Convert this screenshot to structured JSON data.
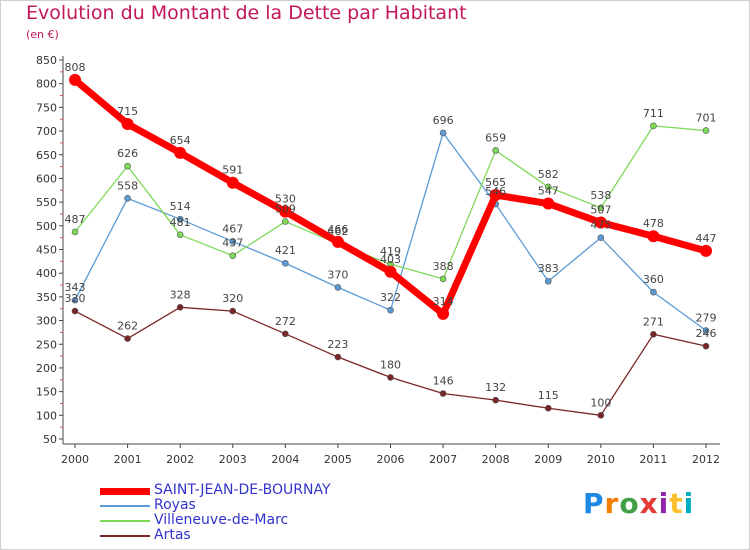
{
  "header": {
    "title": "Evolution du Montant de la Dette par Habitant",
    "unit": "(en €)"
  },
  "logo": {
    "text": "Proxiti",
    "colors": [
      "#1e88e5",
      "#f57c00",
      "#43a047",
      "#e53935",
      "#8e24aa",
      "#fbc02d",
      "#00acc1"
    ]
  },
  "chart_data": {
    "type": "line",
    "title": "Evolution du Montant de la Dette par Habitant",
    "subtitle": "(en €)",
    "xlabel": "",
    "ylabel": "",
    "x": [
      "2000",
      "2001",
      "2002",
      "2003",
      "2004",
      "2005",
      "2006",
      "2007",
      "2008",
      "2009",
      "2010",
      "2011",
      "2012"
    ],
    "ylim": [
      50,
      850
    ],
    "yticks": [
      50,
      100,
      150,
      200,
      250,
      300,
      350,
      400,
      450,
      500,
      550,
      600,
      650,
      700,
      750,
      800,
      850
    ],
    "grid": false,
    "legend_position": "bottom-left",
    "series": [
      {
        "name": "SAINT-JEAN-DE-BOURNAY",
        "color": "#ff0000",
        "width": 7,
        "marker": 6,
        "values": [
          808,
          715,
          654,
          591,
          530,
          466,
          403,
          314,
          565,
          547,
          507,
          478,
          447
        ],
        "labels": [
          "808",
          "715",
          "654",
          "591",
          "530",
          "466",
          "403",
          "314",
          "565",
          "547",
          "507",
          "478",
          "447"
        ]
      },
      {
        "name": "Royas",
        "color": "#5b9bd5",
        "width": 1.3,
        "marker": 3,
        "values": [
          343,
          558,
          514,
          467,
          421,
          370,
          322,
          696,
          546,
          383,
          475,
          360,
          279
        ],
        "labels": [
          "343",
          "558",
          "514",
          "467",
          "421",
          "370",
          "322",
          "696",
          "546",
          "383",
          "475",
          "360",
          "279"
        ]
      },
      {
        "name": "Villeneuve-de-Marc",
        "color": "#7ed957",
        "width": 1.3,
        "marker": 3,
        "values": [
          487,
          626,
          481,
          437,
          509,
          462,
          419,
          388,
          659,
          582,
          538,
          711,
          701
        ],
        "labels": [
          "487",
          "626",
          "481",
          "437",
          "509",
          "462",
          "419",
          "388",
          "659",
          "582",
          "538",
          "711",
          "701"
        ]
      },
      {
        "name": "Artas",
        "color": "#7b2626",
        "width": 1.3,
        "marker": 3,
        "values": [
          320,
          262,
          328,
          320,
          272,
          223,
          180,
          146,
          132,
          115,
          100,
          271,
          246
        ],
        "labels": [
          "320",
          "262",
          "328",
          "320",
          "272",
          "223",
          "180",
          "146",
          "132",
          "115",
          "100",
          "271",
          "246"
        ]
      }
    ]
  }
}
